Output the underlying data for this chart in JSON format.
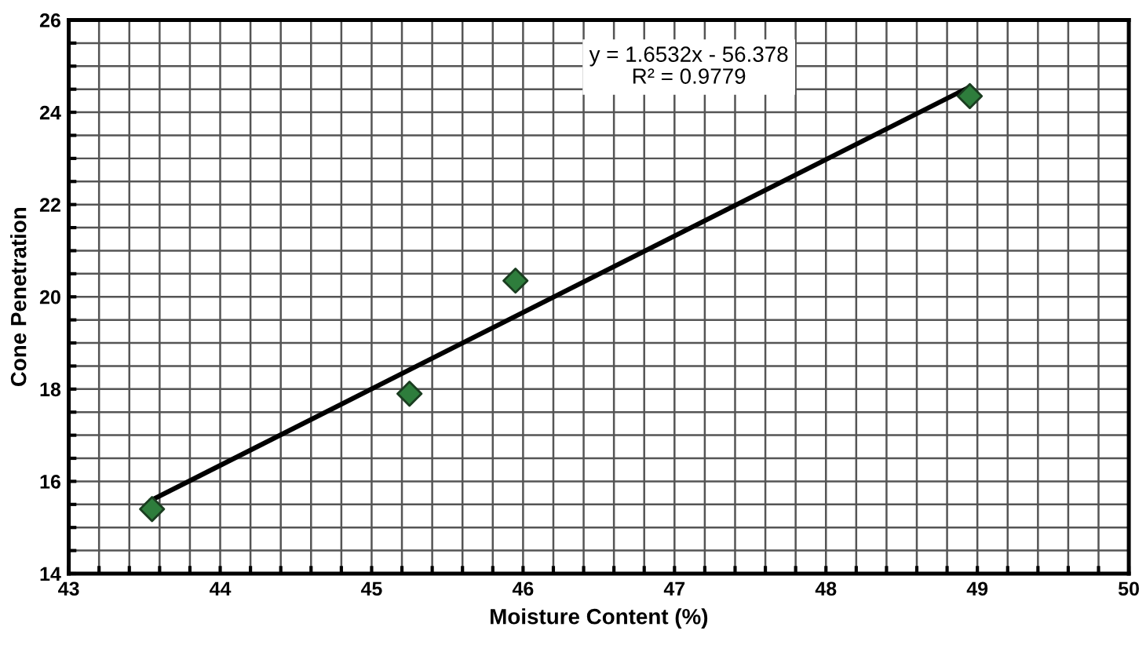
{
  "chart_data": {
    "type": "scatter",
    "xlabel": "Moisture Content (%)",
    "ylabel": "Cone Penetration",
    "xlim": [
      43,
      50
    ],
    "ylim": [
      14,
      26
    ],
    "xticks": [
      43,
      {
        "value": 43.2,
        "label": null
      },
      {
        "value": 43.4,
        "label": null
      },
      {
        "value": 43.6,
        "label": null
      },
      {
        "value": 43.8,
        "label": null
      },
      44,
      {
        "value": 44.2,
        "label": null
      },
      {
        "value": 44.4,
        "label": null
      },
      {
        "value": 44.6,
        "label": null
      },
      {
        "value": 44.8,
        "label": null
      },
      45,
      {
        "value": 45.2,
        "label": null
      },
      {
        "value": 45.4,
        "label": null
      },
      {
        "value": 45.6,
        "label": null
      },
      {
        "value": 45.8,
        "label": null
      },
      46,
      {
        "value": 46.2,
        "label": null
      },
      {
        "value": 46.4,
        "label": null
      },
      {
        "value": 46.6,
        "label": null
      },
      {
        "value": 46.8,
        "label": null
      },
      47,
      {
        "value": 47.2,
        "label": null
      },
      {
        "value": 47.4,
        "label": null
      },
      {
        "value": 47.6,
        "label": null
      },
      {
        "value": 47.8,
        "label": null
      },
      48,
      {
        "value": 48.2,
        "label": null
      },
      {
        "value": 48.4,
        "label": null
      },
      {
        "value": 48.6,
        "label": null
      },
      {
        "value": 48.8,
        "label": null
      },
      49,
      {
        "value": 49.2,
        "label": null
      },
      {
        "value": 49.4,
        "label": null
      },
      {
        "value": 49.6,
        "label": null
      },
      {
        "value": 49.8,
        "label": null
      },
      50
    ],
    "yticks": [
      14,
      {
        "value": 14.5,
        "label": null
      },
      {
        "value": 15,
        "label": null
      },
      {
        "value": 15.5,
        "label": null
      },
      16,
      {
        "value": 16.5,
        "label": null
      },
      {
        "value": 17,
        "label": null
      },
      {
        "value": 17.5,
        "label": null
      },
      18,
      {
        "value": 18.5,
        "label": null
      },
      {
        "value": 19,
        "label": null
      },
      {
        "value": 19.5,
        "label": null
      },
      20,
      {
        "value": 20.5,
        "label": null
      },
      {
        "value": 21,
        "label": null
      },
      {
        "value": 21.5,
        "label": null
      },
      22,
      {
        "value": 22.5,
        "label": null
      },
      {
        "value": 23,
        "label": null
      },
      {
        "value": 23.5,
        "label": null
      },
      24,
      {
        "value": 24.5,
        "label": null
      },
      {
        "value": 25,
        "label": null
      },
      {
        "value": 25.5,
        "label": null
      },
      26
    ],
    "grid": true,
    "legend": false,
    "series": [
      {
        "color": "#2e7d3c",
        "marker": "diamond",
        "x": [
          43.55,
          45.25,
          45.95,
          48.95
        ],
        "values": [
          15.4,
          17.9,
          20.35,
          24.35
        ]
      },
      {
        "type": "line",
        "color": "#000000",
        "marker": "none",
        "line_style": "solid",
        "x": [
          43.55,
          48.95
        ],
        "values": [
          15.6,
          24.55
        ]
      }
    ],
    "annotations": [
      "y = 1.6532x - 56.378\nR² = 0.9779"
    ]
  }
}
